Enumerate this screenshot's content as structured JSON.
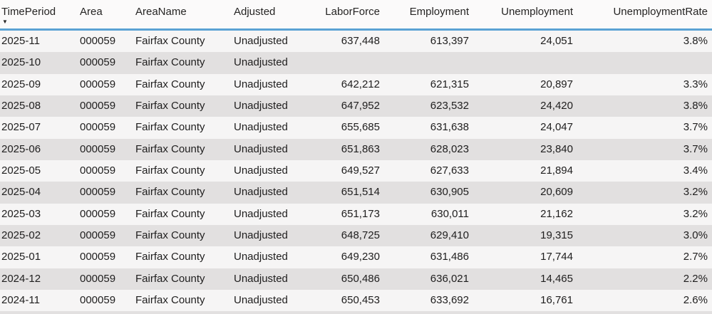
{
  "table": {
    "sort_icon": "▼",
    "columns": [
      {
        "label": "TimePeriod",
        "sorted": "descending"
      },
      {
        "label": "Area"
      },
      {
        "label": "AreaName"
      },
      {
        "label": "Adjusted"
      },
      {
        "label": "LaborForce"
      },
      {
        "label": "Employment"
      },
      {
        "label": "Unemployment"
      },
      {
        "label": "UnemploymentRate"
      }
    ],
    "rows": [
      [
        "2025-11",
        "000059",
        "Fairfax County",
        "Unadjusted",
        "637,448",
        "613,397",
        "24,051",
        "3.8%"
      ],
      [
        "2025-10",
        "000059",
        "Fairfax County",
        "Unadjusted",
        "",
        "",
        "",
        ""
      ],
      [
        "2025-09",
        "000059",
        "Fairfax County",
        "Unadjusted",
        "642,212",
        "621,315",
        "20,897",
        "3.3%"
      ],
      [
        "2025-08",
        "000059",
        "Fairfax County",
        "Unadjusted",
        "647,952",
        "623,532",
        "24,420",
        "3.8%"
      ],
      [
        "2025-07",
        "000059",
        "Fairfax County",
        "Unadjusted",
        "655,685",
        "631,638",
        "24,047",
        "3.7%"
      ],
      [
        "2025-06",
        "000059",
        "Fairfax County",
        "Unadjusted",
        "651,863",
        "628,023",
        "23,840",
        "3.7%"
      ],
      [
        "2025-05",
        "000059",
        "Fairfax County",
        "Unadjusted",
        "649,527",
        "627,633",
        "21,894",
        "3.4%"
      ],
      [
        "2025-04",
        "000059",
        "Fairfax County",
        "Unadjusted",
        "651,514",
        "630,905",
        "20,609",
        "3.2%"
      ],
      [
        "2025-03",
        "000059",
        "Fairfax County",
        "Unadjusted",
        "651,173",
        "630,011",
        "21,162",
        "3.2%"
      ],
      [
        "2025-02",
        "000059",
        "Fairfax County",
        "Unadjusted",
        "648,725",
        "629,410",
        "19,315",
        "3.0%"
      ],
      [
        "2025-01",
        "000059",
        "Fairfax County",
        "Unadjusted",
        "649,230",
        "631,486",
        "17,744",
        "2.7%"
      ],
      [
        "2024-12",
        "000059",
        "Fairfax County",
        "Unadjusted",
        "650,486",
        "636,021",
        "14,465",
        "2.2%"
      ],
      [
        "2024-11",
        "000059",
        "Fairfax County",
        "Unadjusted",
        "650,453",
        "633,692",
        "16,761",
        "2.6%"
      ]
    ]
  },
  "colors": {
    "header_underline": "#5ba2d4",
    "row": "#f6f5f5",
    "row_alt": "#e2e0e0",
    "header_bg": "#fbfafa",
    "text": "#1f1e1e"
  }
}
